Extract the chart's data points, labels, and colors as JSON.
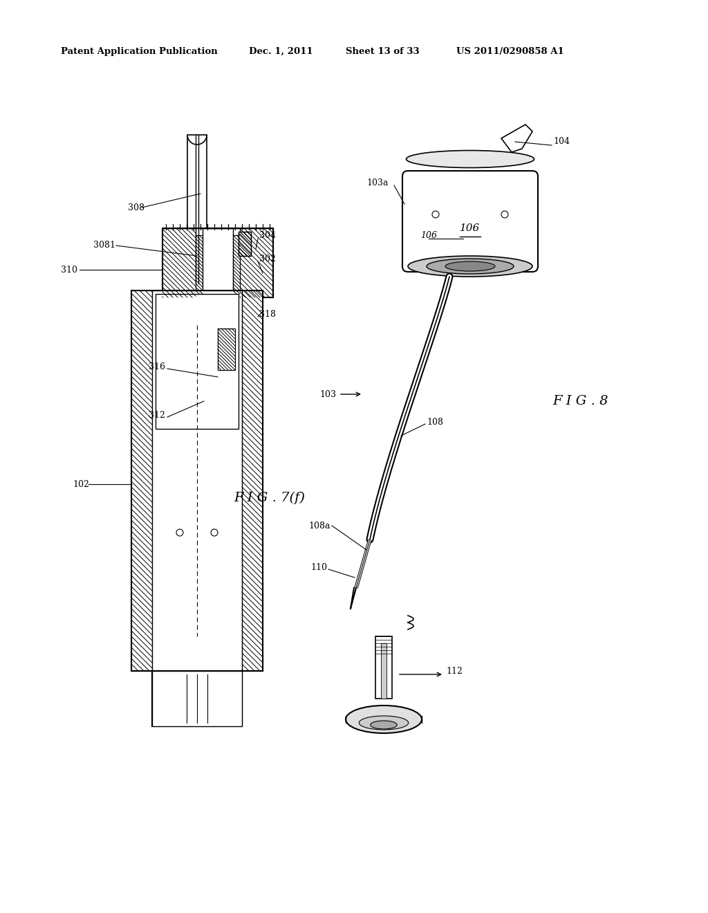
{
  "bg_color": "#ffffff",
  "header_text": "Patent Application Publication",
  "header_date": "Dec. 1, 2011",
  "header_sheet": "Sheet 13 of 33",
  "header_patent": "US 2011/0290858 A1",
  "fig7f_label": "F I G . 7(f)",
  "fig8_label": "F I G . 8"
}
